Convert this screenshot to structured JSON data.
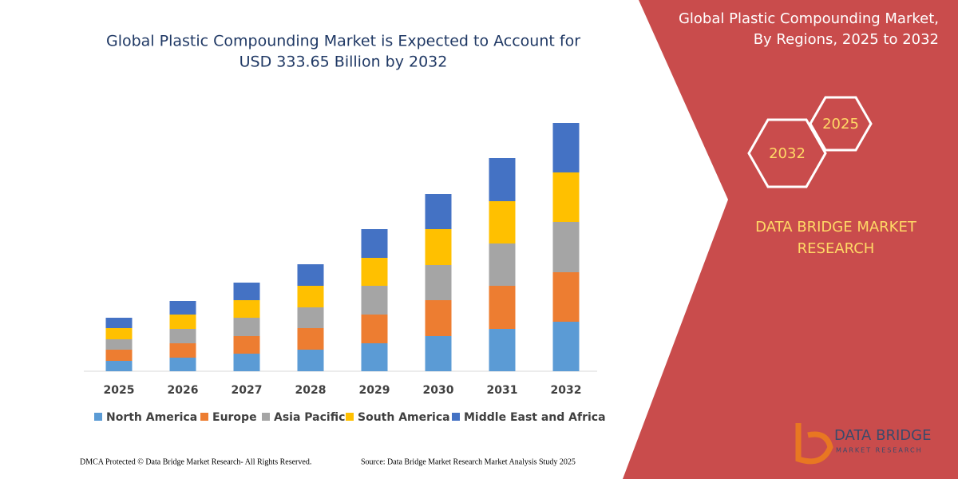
{
  "chart_data": {
    "type": "stacked-bar",
    "title": [
      "Global Plastic Compounding Market is Expected to Account for",
      "USD 333.65 Billion by 2032"
    ],
    "categories": [
      "2025",
      "2026",
      "2027",
      "2028",
      "2029",
      "2030",
      "2031",
      "2032"
    ],
    "series": [
      {
        "name": "North America",
        "color": "#5b9bd5",
        "values": [
          13,
          17,
          22,
          27,
          35,
          44,
          53,
          62
        ]
      },
      {
        "name": "Europe",
        "color": "#ed7d31",
        "values": [
          14,
          18,
          22,
          27,
          36,
          45,
          54,
          62
        ]
      },
      {
        "name": "Asia Pacific",
        "color": "#a5a5a5",
        "values": [
          13,
          18,
          23,
          26,
          36,
          44,
          53,
          63
        ]
      },
      {
        "name": "South America",
        "color": "#ffc000",
        "values": [
          14,
          18,
          22,
          27,
          35,
          45,
          53,
          62
        ]
      },
      {
        "name": "Middle East and Africa",
        "color": "#4472c4",
        "values": [
          13,
          17,
          22,
          27,
          36,
          44,
          54,
          62
        ]
      }
    ]
  },
  "panel": {
    "title": [
      "Global Plastic Compounding Market,",
      "By Regions, 2025 to 2032"
    ],
    "hex_small": "2025",
    "hex_large": "2032",
    "brand": [
      "DATA BRIDGE MARKET",
      "RESEARCH"
    ],
    "logo": {
      "name": "DATA BRIDGE",
      "tagline": "MARKET RESEARCH"
    }
  },
  "footer": {
    "left": "DMCA Protected © Data Bridge Market Research- All Rights Reserved.",
    "right": "Source: Data Bridge Market Research Market Analysis Study 2025"
  }
}
